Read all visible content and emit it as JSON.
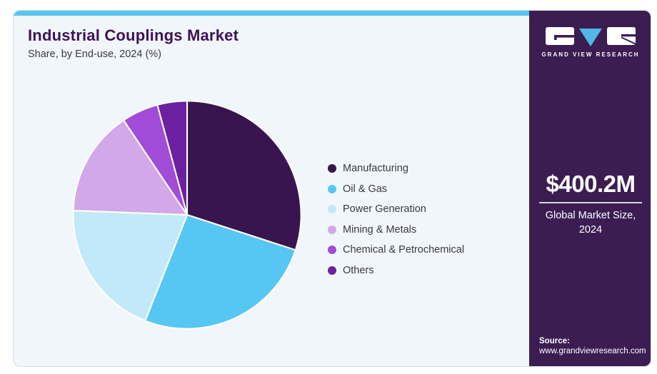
{
  "header": {
    "title": "Industrial Couplings Market",
    "subtitle": "Share, by End-use, 2024 (%)"
  },
  "chart_data": {
    "type": "pie",
    "title": "Industrial Couplings Market",
    "subtitle": "Share, by End-use, 2024 (%)",
    "unit": "percent",
    "start_angle_deg": 0,
    "direction": "clockwise",
    "legend_position": "right",
    "values_are_estimated": true,
    "slices": [
      {
        "label": "Manufacturing",
        "value": 30.0,
        "color": "#38154E"
      },
      {
        "label": "Oil & Gas",
        "value": 26.0,
        "color": "#56C7F2"
      },
      {
        "label": "Power Generation",
        "value": 19.6,
        "color": "#C2E9F9"
      },
      {
        "label": "Mining & Metals",
        "value": 15.0,
        "color": "#D2A8EA"
      },
      {
        "label": "Chemical & Petrochemical",
        "value": 5.2,
        "color": "#A14BD9"
      },
      {
        "label": "Others",
        "value": 4.2,
        "color": "#6B20A0"
      }
    ]
  },
  "side_panel": {
    "logo_text": "GRAND VIEW RESEARCH",
    "market_size": "$400.2M",
    "market_size_caption": "Global Market Size, 2024",
    "source_label": "Source:",
    "source_url": "www.grandviewresearch.com"
  },
  "colors": {
    "accent_bar": "#59C4EE",
    "card_bg": "#F1F6FA",
    "card_border": "#D5DFE8",
    "panel_bg": "#3B1D52",
    "title": "#3F1256",
    "text": "#3A3A42",
    "logo_triangle": "#4FB8E8",
    "divider": "#D9D2E0"
  }
}
